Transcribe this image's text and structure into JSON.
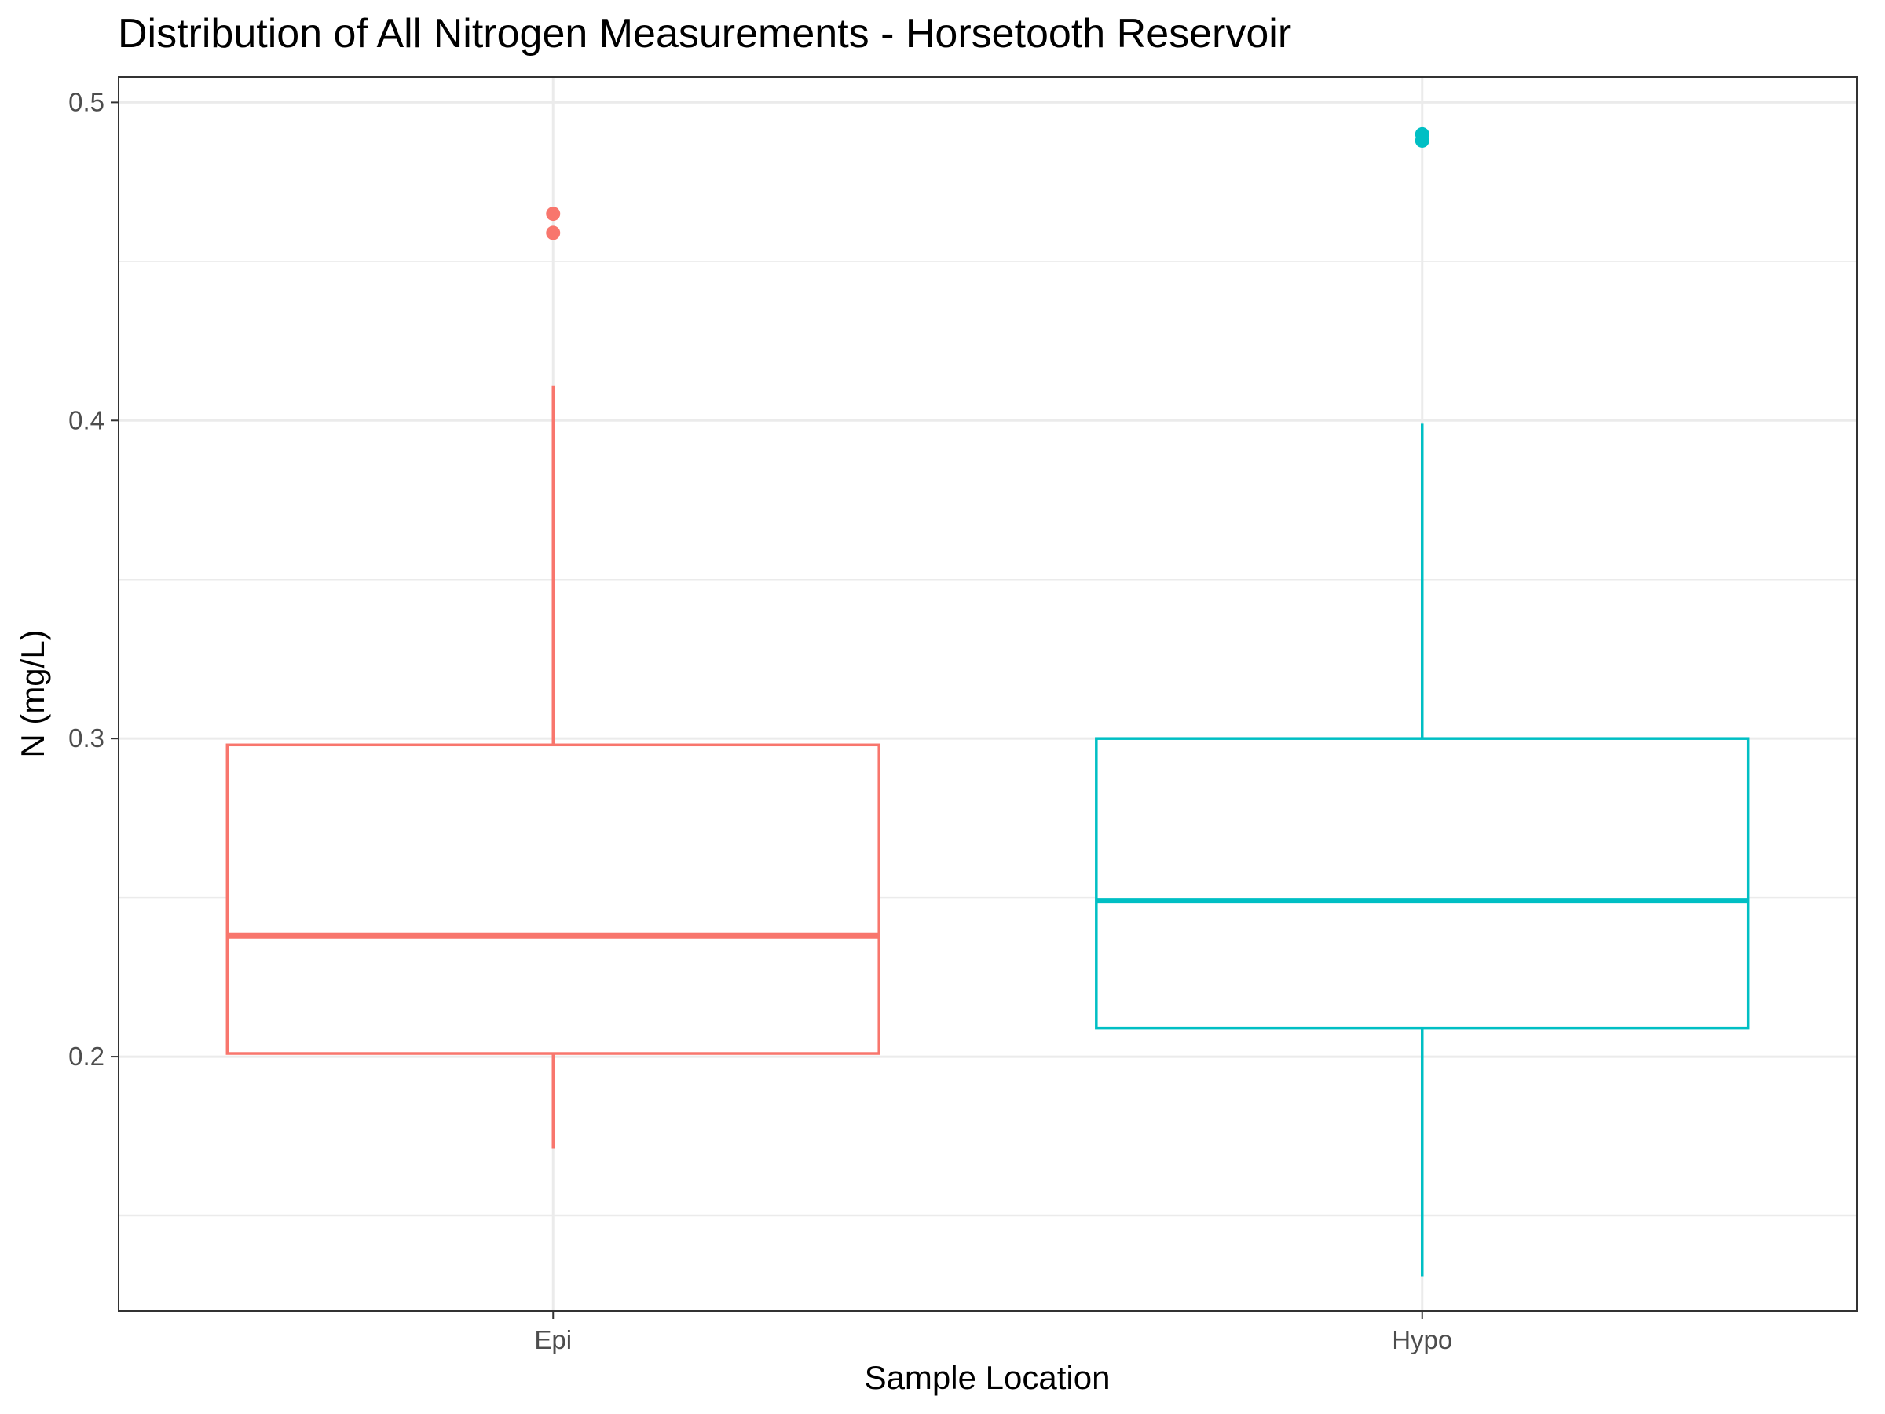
{
  "chart_data": {
    "type": "box",
    "title": "Distribution of All Nitrogen Measurements - Horsetooth Reservoir",
    "xlabel": "Sample Location",
    "ylabel": "N (mg/L)",
    "categories": [
      "Epi",
      "Hypo"
    ],
    "ylim": [
      0.12,
      0.508
    ],
    "y_ticks": [
      0.2,
      0.3,
      0.4,
      0.5
    ],
    "y_tick_labels": [
      "0.2",
      "0.3",
      "0.4",
      "0.5"
    ],
    "y_minor_ticks": [
      0.15,
      0.25,
      0.35,
      0.45
    ],
    "grid": true,
    "legend": "none",
    "series": [
      {
        "category": "Epi",
        "color": "#F8766D",
        "whisker_low": 0.171,
        "q1": 0.201,
        "median": 0.238,
        "q3": 0.298,
        "whisker_high": 0.411,
        "outliers": [
          0.459,
          0.465
        ]
      },
      {
        "category": "Hypo",
        "color": "#00BFC4",
        "whisker_low": 0.131,
        "q1": 0.209,
        "median": 0.249,
        "q3": 0.3,
        "whisker_high": 0.399,
        "outliers": [
          0.488,
          0.49
        ]
      }
    ]
  }
}
